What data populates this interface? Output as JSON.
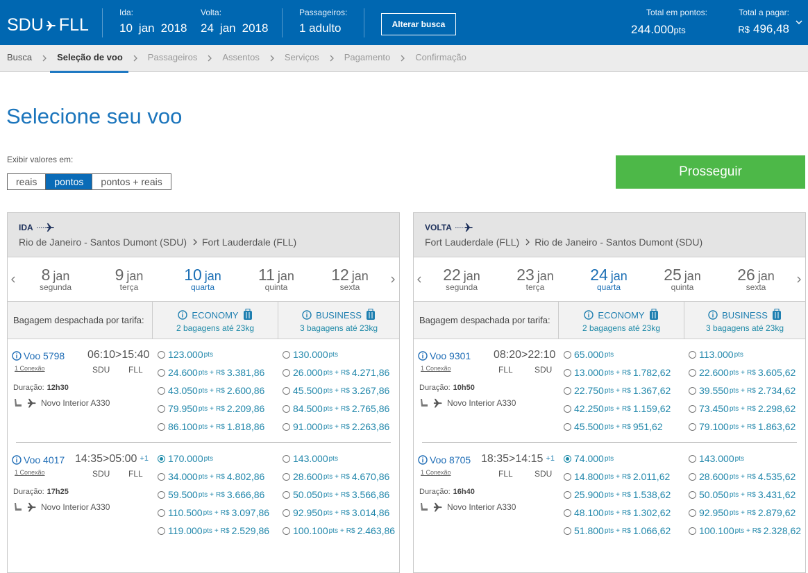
{
  "header": {
    "origin": "SDU",
    "destination": "FLL",
    "outbound": {
      "label": "Ida:",
      "day": "10",
      "month": "jan",
      "year": "2018"
    },
    "return": {
      "label": "Volta:",
      "day": "24",
      "month": "jan",
      "year": "2018"
    },
    "passengers": {
      "label": "Passageiros:",
      "value": "1 adulto"
    },
    "change_button": "Alterar busca",
    "total_points": {
      "label": "Total em pontos:",
      "value": "244.000",
      "unit": "pts"
    },
    "total_pay": {
      "label": "Total a pagar:",
      "currency": "R$",
      "value": "496,48"
    }
  },
  "breadcrumb": {
    "steps": [
      "Busca",
      "Seleção de voo",
      "Passageiros",
      "Assentos",
      "Serviços",
      "Pagamento",
      "Confirmação"
    ],
    "active": 1
  },
  "page": {
    "title": "Selecione seu voo",
    "display_label": "Exibir valores em:",
    "display_options": [
      "reais",
      "pontos",
      "pontos + reais"
    ],
    "display_active": 1,
    "proceed_button": "Prosseguir"
  },
  "units": {
    "points": "pts",
    "plus": "+",
    "currency": "R$",
    "time_separator": ">"
  },
  "panels": [
    {
      "label": "IDA",
      "from": "Rio de Janeiro - Santos Dumont (SDU)",
      "to": "Fort Lauderdale (FLL)",
      "dates": [
        {
          "day": "8",
          "month": "jan",
          "weekday": "segunda"
        },
        {
          "day": "9",
          "month": "jan",
          "weekday": "terça"
        },
        {
          "day": "10",
          "month": "jan",
          "weekday": "quarta"
        },
        {
          "day": "11",
          "month": "jan",
          "weekday": "quinta"
        },
        {
          "day": "12",
          "month": "jan",
          "weekday": "sexta"
        }
      ],
      "selected_date": 2,
      "baggage_label": "Bagagem despachada por tarifa:",
      "fares": [
        {
          "name": "ECONOMY",
          "baggage": "2 bagagens até 23kg"
        },
        {
          "name": "BUSINESS",
          "baggage": "3 bagagens até 23kg"
        }
      ],
      "flights": [
        {
          "number": "Voo 5798",
          "connections": "1 Conexão",
          "departure": "06:10",
          "arrival": "15:40",
          "from": "SDU",
          "to": "FLL",
          "duration_label": "Duração:",
          "duration": "12h30",
          "aircraft": "Novo Interior A330",
          "options": [
            [
              {
                "points": "123.000"
              },
              {
                "points": "24.600",
                "reais": "3.381,86"
              },
              {
                "points": "43.050",
                "reais": "2.600,86"
              },
              {
                "points": "79.950",
                "reais": "2.209,86"
              },
              {
                "points": "86.100",
                "reais": "1.818,86"
              }
            ],
            [
              {
                "points": "130.000"
              },
              {
                "points": "26.000",
                "reais": "4.271,86"
              },
              {
                "points": "45.500",
                "reais": "3.267,86"
              },
              {
                "points": "84.500",
                "reais": "2.765,86"
              },
              {
                "points": "91.000",
                "reais": "2.263,86"
              }
            ]
          ]
        },
        {
          "number": "Voo 4017",
          "connections": "1 Conexão",
          "departure": "14:35",
          "arrival": "05:00",
          "day_offset": "+1",
          "from": "SDU",
          "to": "FLL",
          "duration_label": "Duração:",
          "duration": "17h25",
          "aircraft": "Novo Interior A330",
          "options": [
            [
              {
                "points": "170.000",
                "selected": true
              },
              {
                "points": "34.000",
                "reais": "4.802,86"
              },
              {
                "points": "59.500",
                "reais": "3.666,86"
              },
              {
                "points": "110.500",
                "reais": "3.097,86"
              },
              {
                "points": "119.000",
                "reais": "2.529,86"
              }
            ],
            [
              {
                "points": "143.000"
              },
              {
                "points": "28.600",
                "reais": "4.670,86"
              },
              {
                "points": "50.050",
                "reais": "3.566,86"
              },
              {
                "points": "92.950",
                "reais": "3.014,86"
              },
              {
                "points": "100.100",
                "reais": "2.463,86"
              }
            ]
          ]
        }
      ]
    },
    {
      "label": "VOLTA",
      "from": "Fort Lauderdale (FLL)",
      "to": "Rio de Janeiro - Santos Dumont (SDU)",
      "dates": [
        {
          "day": "22",
          "month": "jan",
          "weekday": "segunda"
        },
        {
          "day": "23",
          "month": "jan",
          "weekday": "terça"
        },
        {
          "day": "24",
          "month": "jan",
          "weekday": "quarta"
        },
        {
          "day": "25",
          "month": "jan",
          "weekday": "quinta"
        },
        {
          "day": "26",
          "month": "jan",
          "weekday": "sexta"
        }
      ],
      "selected_date": 2,
      "baggage_label": "Bagagem despachada por tarifa:",
      "fares": [
        {
          "name": "ECONOMY",
          "baggage": "2 bagagens até 23kg"
        },
        {
          "name": "BUSINESS",
          "baggage": "3 bagagens até 23kg"
        }
      ],
      "flights": [
        {
          "number": "Voo 9301",
          "connections": "1 Conexão",
          "departure": "08:20",
          "arrival": "22:10",
          "from": "FLL",
          "to": "SDU",
          "duration_label": "Duração:",
          "duration": "10h50",
          "aircraft": "Novo Interior A330",
          "options": [
            [
              {
                "points": "65.000"
              },
              {
                "points": "13.000",
                "reais": "1.782,62"
              },
              {
                "points": "22.750",
                "reais": "1.367,62"
              },
              {
                "points": "42.250",
                "reais": "1.159,62"
              },
              {
                "points": "45.500",
                "reais": "951,62"
              }
            ],
            [
              {
                "points": "113.000"
              },
              {
                "points": "22.600",
                "reais": "3.605,62"
              },
              {
                "points": "39.550",
                "reais": "2.734,62"
              },
              {
                "points": "73.450",
                "reais": "2.298,62"
              },
              {
                "points": "79.100",
                "reais": "1.863,62"
              }
            ]
          ]
        },
        {
          "number": "Voo 8705",
          "connections": "1 Conexão",
          "departure": "18:35",
          "arrival": "14:15",
          "day_offset": "+1",
          "from": "FLL",
          "to": "SDU",
          "duration_label": "Duração:",
          "duration": "16h40",
          "aircraft": "Novo Interior A330",
          "options": [
            [
              {
                "points": "74.000",
                "selected": true
              },
              {
                "points": "14.800",
                "reais": "2.011,62"
              },
              {
                "points": "25.900",
                "reais": "1.538,62"
              },
              {
                "points": "48.100",
                "reais": "1.302,62"
              },
              {
                "points": "51.800",
                "reais": "1.066,62"
              }
            ],
            [
              {
                "points": "143.000"
              },
              {
                "points": "28.600",
                "reais": "4.535,62"
              },
              {
                "points": "50.050",
                "reais": "3.431,62"
              },
              {
                "points": "92.950",
                "reais": "2.879,62"
              },
              {
                "points": "100.100",
                "reais": "2.328,62"
              }
            ]
          ]
        }
      ]
    }
  ]
}
